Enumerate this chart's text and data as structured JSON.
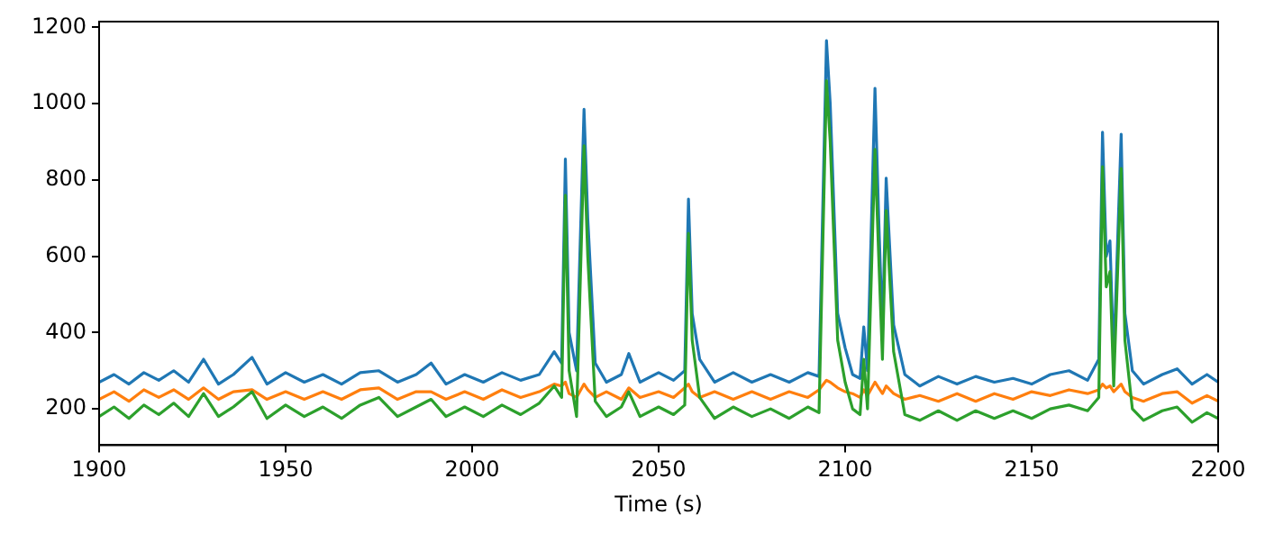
{
  "chart_data": {
    "type": "line",
    "xlabel": "Time (s)",
    "x": [
      1900,
      1904,
      1908,
      1912,
      1916,
      1920,
      1924,
      1928,
      1932,
      1936,
      1941,
      1945,
      1950,
      1955,
      1960,
      1965,
      1970,
      1975,
      1980,
      1985,
      1989,
      1993,
      1998,
      2003,
      2008,
      2013,
      2018,
      2022,
      2024,
      2025,
      2026,
      2028,
      2030,
      2031,
      2033,
      2036,
      2040,
      2042,
      2045,
      2050,
      2054,
      2057,
      2058,
      2059,
      2061,
      2065,
      2070,
      2075,
      2080,
      2085,
      2090,
      2093,
      2095,
      2096,
      2098,
      2100,
      2102,
      2104,
      2105,
      2106,
      2108,
      2109,
      2110,
      2111,
      2113,
      2116,
      2120,
      2125,
      2130,
      2135,
      2140,
      2145,
      2150,
      2155,
      2160,
      2165,
      2168,
      2169,
      2170,
      2171,
      2172,
      2174,
      2175,
      2177,
      2180,
      2185,
      2189,
      2193,
      2197,
      2200
    ],
    "series": [
      {
        "color": "#1f77b4",
        "values": [
          270,
          290,
          265,
          295,
          275,
          300,
          270,
          330,
          265,
          290,
          335,
          265,
          295,
          270,
          290,
          265,
          295,
          300,
          270,
          290,
          320,
          265,
          290,
          270,
          295,
          275,
          290,
          350,
          320,
          855,
          400,
          300,
          985,
          700,
          320,
          270,
          290,
          345,
          270,
          295,
          275,
          300,
          750,
          450,
          330,
          270,
          295,
          270,
          290,
          270,
          295,
          285,
          1165,
          1000,
          450,
          360,
          290,
          280,
          415,
          300,
          1040,
          700,
          400,
          805,
          420,
          290,
          260,
          285,
          265,
          285,
          270,
          280,
          265,
          290,
          300,
          275,
          330,
          925,
          600,
          640,
          330,
          920,
          450,
          300,
          265,
          290,
          305,
          265,
          290,
          270
        ]
      },
      {
        "color": "#ff7f0e",
        "values": [
          225,
          245,
          220,
          250,
          230,
          250,
          225,
          255,
          225,
          245,
          250,
          225,
          245,
          225,
          245,
          225,
          250,
          255,
          225,
          245,
          245,
          225,
          245,
          225,
          250,
          230,
          245,
          265,
          260,
          270,
          240,
          230,
          265,
          250,
          230,
          245,
          225,
          255,
          230,
          245,
          230,
          255,
          265,
          245,
          230,
          245,
          225,
          245,
          225,
          245,
          230,
          250,
          275,
          270,
          255,
          245,
          240,
          230,
          250,
          235,
          270,
          255,
          240,
          260,
          240,
          225,
          235,
          220,
          240,
          220,
          240,
          225,
          245,
          235,
          250,
          240,
          250,
          265,
          255,
          260,
          245,
          265,
          245,
          230,
          220,
          240,
          245,
          215,
          235,
          220
        ]
      },
      {
        "color": "#2ca02c",
        "values": [
          180,
          205,
          175,
          210,
          185,
          215,
          180,
          240,
          180,
          205,
          245,
          175,
          210,
          180,
          205,
          175,
          210,
          230,
          180,
          205,
          225,
          180,
          205,
          180,
          210,
          185,
          215,
          260,
          230,
          760,
          300,
          180,
          890,
          600,
          220,
          180,
          205,
          245,
          180,
          205,
          185,
          210,
          660,
          380,
          230,
          175,
          205,
          180,
          200,
          175,
          205,
          190,
          1060,
          900,
          380,
          270,
          200,
          185,
          330,
          200,
          880,
          600,
          330,
          720,
          350,
          185,
          170,
          195,
          170,
          195,
          175,
          195,
          175,
          200,
          210,
          195,
          230,
          835,
          520,
          560,
          260,
          830,
          380,
          200,
          170,
          195,
          205,
          165,
          190,
          175
        ]
      }
    ],
    "xlim": [
      1900,
      2200
    ],
    "xticks": [
      1900,
      1950,
      2000,
      2050,
      2100,
      2150,
      2200
    ],
    "ylim": [
      105,
      1215
    ],
    "yticks": [
      200,
      400,
      600,
      800,
      1000,
      1200
    ],
    "grid": false,
    "legend": false
  }
}
